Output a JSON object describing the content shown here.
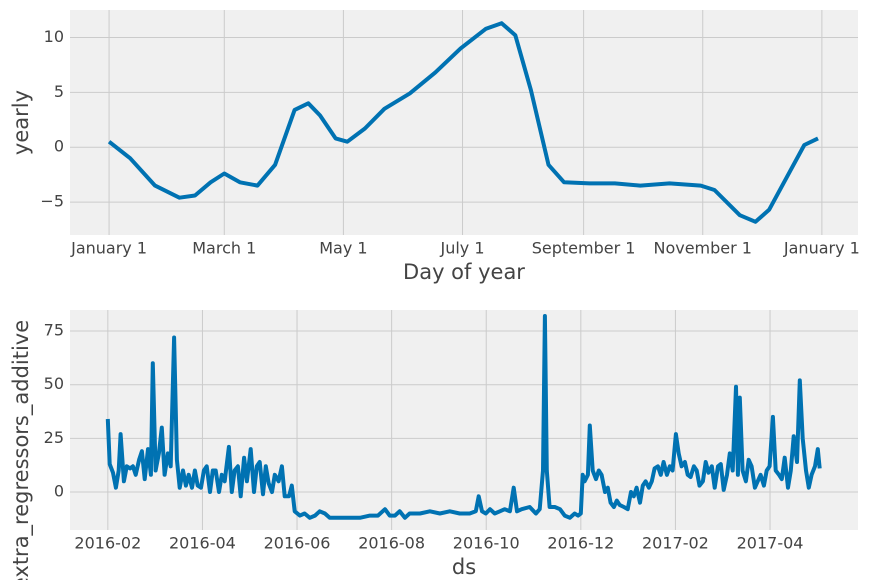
{
  "chart_data": [
    {
      "type": "line",
      "xlabel": "Day of year",
      "ylabel": "yearly",
      "color": "#0072b2",
      "grid": true,
      "xlim": [
        -20,
        383.5
      ],
      "ylim": [
        -8,
        12.5
      ],
      "xticks": [
        {
          "value": 0,
          "label": "January 1"
        },
        {
          "value": 59,
          "label": "March 1"
        },
        {
          "value": 120,
          "label": "May 1"
        },
        {
          "value": 181,
          "label": "July 1"
        },
        {
          "value": 243,
          "label": "September 1"
        },
        {
          "value": 304,
          "label": "November 1"
        },
        {
          "value": 365,
          "label": "January 1"
        }
      ],
      "yticks": [
        {
          "value": -5,
          "label": "−5"
        },
        0,
        5,
        10
      ],
      "x": [
        0,
        10.8,
        23.5,
        36,
        44,
        52,
        59,
        67,
        76,
        85,
        95,
        102,
        108,
        116,
        122,
        131,
        141,
        154,
        167,
        180,
        193,
        201,
        208,
        216,
        225,
        233,
        246,
        259,
        272,
        287,
        303,
        310,
        323,
        331,
        338,
        349,
        356,
        363
      ],
      "values": [
        0.5,
        -1.0,
        -3.5,
        -4.6,
        -4.4,
        -3.2,
        -2.4,
        -3.2,
        -3.5,
        -1.6,
        3.4,
        4.0,
        2.9,
        0.8,
        0.5,
        1.7,
        3.5,
        4.9,
        6.8,
        9.0,
        10.8,
        11.3,
        10.2,
        5.2,
        -1.6,
        -3.2,
        -3.3,
        -3.3,
        -3.5,
        -3.3,
        -3.5,
        -3.9,
        -6.2,
        -6.8,
        -5.7,
        -2.1,
        0.2,
        0.8
      ]
    },
    {
      "type": "line",
      "xlabel": "ds",
      "ylabel": "extra_regressors_additive",
      "color": "#0072b2",
      "grid": true,
      "xlim": [
        0.2,
        16.86
      ],
      "ylim": [
        -17.7,
        84.8
      ],
      "xticks": [
        {
          "value": 1,
          "label": "2016-02"
        },
        {
          "value": 3,
          "label": "2016-04"
        },
        {
          "value": 5,
          "label": "2016-06"
        },
        {
          "value": 7,
          "label": "2016-08"
        },
        {
          "value": 9,
          "label": "2016-10"
        },
        {
          "value": 11,
          "label": "2016-12"
        },
        {
          "value": 13,
          "label": "2017-02"
        },
        {
          "value": 15,
          "label": "2017-04"
        }
      ],
      "yticks": [
        0,
        25,
        50,
        75
      ],
      "x": [
        1.0,
        1.04,
        1.11,
        1.17,
        1.23,
        1.27,
        1.34,
        1.4,
        1.47,
        1.53,
        1.59,
        1.66,
        1.72,
        1.78,
        1.85,
        1.91,
        1.95,
        2.01,
        2.08,
        2.14,
        2.2,
        2.27,
        2.33,
        2.4,
        2.46,
        2.52,
        2.59,
        2.65,
        2.71,
        2.78,
        2.84,
        2.9,
        2.97,
        3.03,
        3.09,
        3.16,
        3.22,
        3.28,
        3.35,
        3.41,
        3.47,
        3.56,
        3.62,
        3.68,
        3.75,
        3.81,
        3.88,
        3.94,
        4.02,
        4.09,
        4.15,
        4.21,
        4.28,
        4.34,
        4.4,
        4.47,
        4.53,
        4.61,
        4.68,
        4.74,
        4.83,
        4.89,
        4.95,
        5.06,
        5.16,
        5.27,
        5.38,
        5.48,
        5.59,
        5.69,
        5.9,
        6.12,
        6.33,
        6.54,
        6.71,
        6.86,
        6.96,
        7.07,
        7.17,
        7.28,
        7.38,
        7.6,
        7.81,
        8.02,
        8.23,
        8.44,
        8.65,
        8.78,
        8.84,
        8.91,
        8.99,
        9.08,
        9.18,
        9.29,
        9.39,
        9.5,
        9.58,
        9.65,
        9.75,
        9.92,
        10.05,
        10.13,
        10.2,
        10.24,
        10.28,
        10.34,
        10.45,
        10.56,
        10.66,
        10.77,
        10.87,
        10.94,
        11.0,
        11.04,
        11.08,
        11.15,
        11.19,
        11.25,
        11.32,
        11.38,
        11.44,
        11.51,
        11.57,
        11.63,
        11.7,
        11.76,
        11.82,
        11.91,
        11.99,
        12.06,
        12.12,
        12.18,
        12.25,
        12.31,
        12.37,
        12.44,
        12.5,
        12.56,
        12.63,
        12.69,
        12.75,
        12.82,
        12.88,
        12.94,
        13.01,
        13.07,
        13.13,
        13.2,
        13.26,
        13.32,
        13.39,
        13.45,
        13.51,
        13.58,
        13.64,
        13.7,
        13.77,
        13.83,
        13.9,
        13.96,
        14.02,
        14.09,
        14.15,
        14.21,
        14.28,
        14.32,
        14.36,
        14.42,
        14.49,
        14.55,
        14.61,
        14.68,
        14.74,
        14.8,
        14.87,
        14.93,
        14.99,
        15.06,
        15.12,
        15.19,
        15.25,
        15.31,
        15.38,
        15.44,
        15.5,
        15.57,
        15.63,
        15.69,
        15.76,
        15.82,
        15.88,
        15.95,
        16.01,
        16.05
      ],
      "values": [
        34,
        13,
        9,
        2,
        10,
        27,
        5,
        12,
        11,
        12,
        8,
        15,
        19,
        6,
        20,
        8,
        60,
        10,
        18,
        30,
        8,
        18,
        12,
        72,
        15,
        2,
        10,
        3,
        8,
        2,
        10,
        3,
        2,
        10,
        12,
        0,
        10,
        10,
        0,
        8,
        5,
        21,
        0,
        10,
        12,
        -2,
        16,
        5,
        20,
        0,
        12,
        14,
        -1,
        12,
        4,
        0,
        8,
        5,
        12,
        -2,
        -2,
        3,
        -9,
        -11,
        -10,
        -12,
        -11,
        -9,
        -10,
        -12,
        -12,
        -12,
        -12,
        -11,
        -11,
        -8,
        -11,
        -11,
        -9,
        -12,
        -10,
        -10,
        -9,
        -10,
        -9,
        -10,
        -10,
        -9,
        -2,
        -9,
        -10,
        -8,
        -10,
        -9,
        -8,
        -9,
        2,
        -9,
        -8,
        -7,
        -10,
        -8,
        10,
        82,
        10,
        -7,
        -7,
        -8,
        -11,
        -12,
        -10,
        -11,
        -10,
        8,
        5,
        8,
        31,
        10,
        6,
        10,
        8,
        0,
        2,
        -5,
        -7,
        -4,
        -6,
        -7,
        -8,
        0,
        -2,
        2,
        -5,
        3,
        5,
        2,
        5,
        11,
        12,
        8,
        14,
        8,
        12,
        10,
        27,
        18,
        12,
        14,
        8,
        7,
        12,
        10,
        3,
        5,
        14,
        9,
        12,
        2,
        12,
        13,
        1,
        8,
        18,
        10,
        49,
        8,
        44,
        10,
        5,
        15,
        12,
        2,
        5,
        8,
        3,
        10,
        12,
        35,
        10,
        8,
        6,
        16,
        2,
        10,
        26,
        14,
        52,
        25,
        10,
        2,
        8,
        12,
        20,
        11
      ]
    }
  ]
}
